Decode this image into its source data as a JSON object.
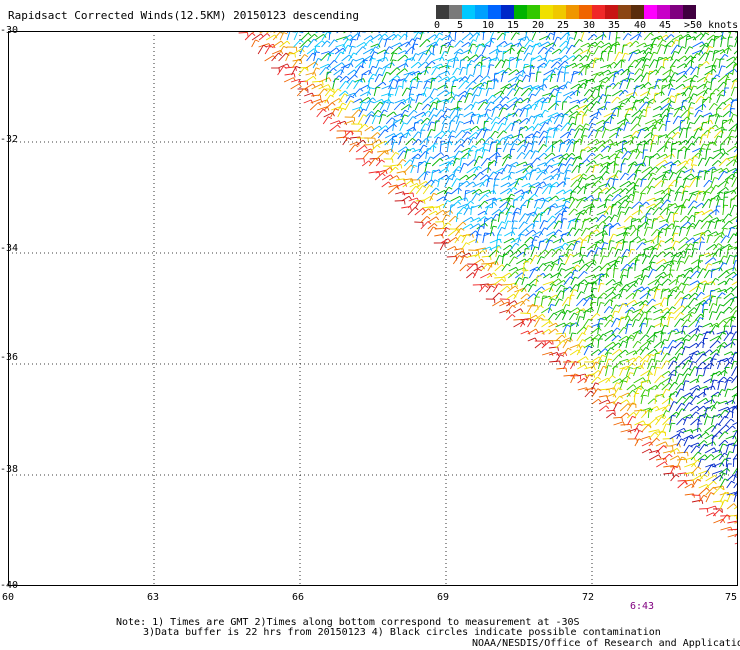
{
  "title": "Rapidsact Corrected Winds(12.5KM) 20150123 descending",
  "legend": {
    "colors": [
      "#3c3c3c",
      "#7a7a7a",
      "#00c8ff",
      "#00a0ff",
      "#0064ff",
      "#0028c8",
      "#00b400",
      "#32c800",
      "#f0e000",
      "#f0c800",
      "#f09600",
      "#f06400",
      "#f02828",
      "#c81414",
      "#8b4513",
      "#5a2d0c",
      "#ff00ff",
      "#c800c8",
      "#800080",
      "#400040"
    ],
    "labels": [
      "0",
      "5",
      "10",
      "15",
      "20",
      "25",
      "30",
      "35",
      "40",
      "45",
      ">50 knots"
    ]
  },
  "lat_labels": [
    "-30",
    "-32",
    "-34",
    "-36",
    "-38",
    "-40"
  ],
  "lon_labels": [
    "60",
    "63",
    "66",
    "69",
    "72",
    "75"
  ],
  "pass_time": "6:43",
  "notes": [
    "Note: 1) Times are GMT 2)Times along bottom correspond to measurement at -30S",
    "3)Data buffer is 22 hrs from 20150123 4) Black circles indicate possible contamination"
  ],
  "credit": "NOAA/NESDIS/Office of Research and Applications",
  "map_data": {
    "lon_range": [
      60,
      75
    ],
    "lat_range": [
      -40,
      -30
    ],
    "swath_edge_approx": [
      [
        64.7,
        -30
      ],
      [
        70,
        -35
      ],
      [
        75,
        -39.3
      ]
    ],
    "wind_speed_units": "knots"
  }
}
